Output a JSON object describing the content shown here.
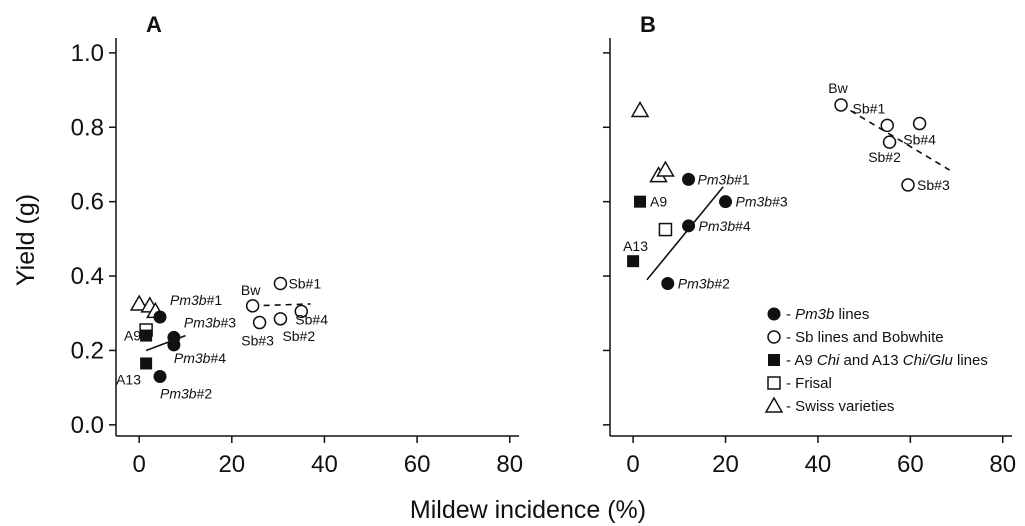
{
  "chart_data": {
    "type": "scatter",
    "xlabel": "Mildew incidence (%)",
    "ylabel": "Yield (g)",
    "xlim": [
      -5,
      82
    ],
    "ylim": [
      -0.03,
      1.04
    ],
    "x_ticks": [
      "0",
      "20",
      "40",
      "60",
      "80"
    ],
    "y_ticks": [
      "0.0",
      "0.2",
      "0.4",
      "0.6",
      "0.8",
      "1.0"
    ],
    "grid": false,
    "legend": {
      "placement": "bottom-right of panel B",
      "entries": [
        {
          "marker": "circle-filled",
          "parts": [
            {
              "t": "- ",
              "i": false
            },
            {
              "t": "Pm3b",
              "i": true
            },
            {
              "t": " lines",
              "i": false
            }
          ]
        },
        {
          "marker": "circle-open",
          "parts": [
            {
              "t": "- Sb lines and Bobwhite",
              "i": false
            }
          ]
        },
        {
          "marker": "square-filled",
          "parts": [
            {
              "t": "- A9 ",
              "i": false
            },
            {
              "t": "Chi",
              "i": true
            },
            {
              "t": " and A13 ",
              "i": false
            },
            {
              "t": "Chi/Glu",
              "i": true
            },
            {
              "t": " lines",
              "i": false
            }
          ]
        },
        {
          "marker": "square-open",
          "parts": [
            {
              "t": "- Frisal",
              "i": false
            }
          ]
        },
        {
          "marker": "triangle-open",
          "parts": [
            {
              "t": "- Swiss varieties",
              "i": false
            }
          ]
        }
      ]
    },
    "panels": [
      {
        "panel": "A",
        "points": [
          {
            "x": 0.0,
            "y": 0.325,
            "marker": "triangle-open"
          },
          {
            "x": 2.3,
            "y": 0.32,
            "marker": "triangle-open"
          },
          {
            "x": 3.5,
            "y": 0.305,
            "marker": "triangle-open"
          },
          {
            "x": 1.5,
            "y": 0.255,
            "marker": "square-open"
          },
          {
            "x": 1.5,
            "y": 0.24,
            "marker": "square-filled",
            "label": [
              {
                "t": "A9",
                "i": false
              }
            ],
            "anchor": "end",
            "dx": -5,
            "dy": 5
          },
          {
            "x": 1.5,
            "y": 0.165,
            "marker": "square-filled",
            "label": [
              {
                "t": "A13",
                "i": false
              }
            ],
            "anchor": "start",
            "dx": -30,
            "dy": 21
          },
          {
            "x": 4.5,
            "y": 0.29,
            "marker": "circle-filled",
            "label": [
              {
                "t": "Pm3b",
                "i": true
              },
              {
                "t": "#1",
                "i": false
              }
            ],
            "anchor": "start",
            "dx": 10,
            "dy": -12
          },
          {
            "x": 7.5,
            "y": 0.235,
            "marker": "circle-filled",
            "label": [
              {
                "t": "Pm3b",
                "i": true
              },
              {
                "t": "#3",
                "i": false
              }
            ],
            "anchor": "start",
            "dx": 10,
            "dy": -10
          },
          {
            "x": 7.5,
            "y": 0.215,
            "marker": "circle-filled",
            "label": [
              {
                "t": "Pm3b",
                "i": true
              },
              {
                "t": "#4",
                "i": false
              }
            ],
            "anchor": "start",
            "dx": 0,
            "dy": 18
          },
          {
            "x": 4.5,
            "y": 0.13,
            "marker": "circle-filled",
            "label": [
              {
                "t": "Pm3b",
                "i": true
              },
              {
                "t": "#2",
                "i": false
              }
            ],
            "anchor": "start",
            "dx": 0,
            "dy": 22
          },
          {
            "x": 24.5,
            "y": 0.32,
            "marker": "circle-open",
            "label": [
              {
                "t": "Bw",
                "i": false
              }
            ],
            "anchor": "middle",
            "dx": -2,
            "dy": -11
          },
          {
            "x": 30.5,
            "y": 0.38,
            "marker": "circle-open",
            "label": [
              {
                "t": "Sb#1",
                "i": false
              }
            ],
            "anchor": "start",
            "dx": 8,
            "dy": 5
          },
          {
            "x": 26.0,
            "y": 0.275,
            "marker": "circle-open",
            "label": [
              {
                "t": "Sb#3",
                "i": false
              }
            ],
            "anchor": "middle",
            "dx": -2,
            "dy": 23
          },
          {
            "x": 30.5,
            "y": 0.285,
            "marker": "circle-open",
            "label": [
              {
                "t": "Sb#2",
                "i": false
              }
            ],
            "anchor": "start",
            "dx": 2,
            "dy": 22
          },
          {
            "x": 35.0,
            "y": 0.305,
            "marker": "circle-open",
            "label": [
              {
                "t": "Sb#4",
                "i": false
              }
            ],
            "anchor": "start",
            "dx": -6,
            "dy": 13
          }
        ],
        "fits": [
          {
            "x": [
              1.5,
              10.0
            ],
            "y": [
              0.2,
              0.24
            ],
            "dash": false
          },
          {
            "x": 24.5,
            "y": 0.32,
            "x2": 37.0,
            "y2": 0.325,
            "dash": true
          }
        ]
      },
      {
        "panel": "B",
        "points": [
          {
            "x": 1.5,
            "y": 0.845,
            "marker": "triangle-open"
          },
          {
            "x": 5.5,
            "y": 0.67,
            "marker": "triangle-open"
          },
          {
            "x": 7.0,
            "y": 0.685,
            "marker": "triangle-open"
          },
          {
            "x": 7.0,
            "y": 0.525,
            "marker": "square-open"
          },
          {
            "x": 1.5,
            "y": 0.6,
            "marker": "square-filled",
            "label": [
              {
                "t": "A9",
                "i": false
              }
            ],
            "anchor": "start",
            "dx": 10,
            "dy": 5
          },
          {
            "x": 0.0,
            "y": 0.44,
            "marker": "square-filled",
            "label": [
              {
                "t": "A13",
                "i": false
              }
            ],
            "anchor": "start",
            "dx": -10,
            "dy": -10
          },
          {
            "x": 12.0,
            "y": 0.66,
            "marker": "circle-filled",
            "label": [
              {
                "t": "Pm3b",
                "i": true
              },
              {
                "t": "#1",
                "i": false
              }
            ],
            "anchor": "start",
            "dx": 9,
            "dy": 5
          },
          {
            "x": 20.0,
            "y": 0.6,
            "marker": "circle-filled",
            "label": [
              {
                "t": "Pm3b",
                "i": true
              },
              {
                "t": "#3",
                "i": false
              }
            ],
            "anchor": "start",
            "dx": 10,
            "dy": 5
          },
          {
            "x": 12.0,
            "y": 0.535,
            "marker": "circle-filled",
            "label": [
              {
                "t": "Pm3b",
                "i": true
              },
              {
                "t": "#4",
                "i": false
              }
            ],
            "anchor": "start",
            "dx": 10,
            "dy": 5
          },
          {
            "x": 7.5,
            "y": 0.38,
            "marker": "circle-filled",
            "label": [
              {
                "t": "Pm3b",
                "i": true
              },
              {
                "t": "#2",
                "i": false
              }
            ],
            "anchor": "start",
            "dx": 10,
            "dy": 5
          },
          {
            "x": 45.0,
            "y": 0.86,
            "marker": "circle-open",
            "label": [
              {
                "t": "Bw",
                "i": false
              }
            ],
            "anchor": "middle",
            "dx": -3,
            "dy": -12
          },
          {
            "x": 55.0,
            "y": 0.805,
            "marker": "circle-open",
            "label": [
              {
                "t": "Sb#1",
                "i": false
              }
            ],
            "anchor": "end",
            "dx": -2,
            "dy": -12
          },
          {
            "x": 62.0,
            "y": 0.81,
            "marker": "circle-open",
            "label": [
              {
                "t": "Sb#4",
                "i": false
              }
            ],
            "anchor": "middle",
            "dx": 0,
            "dy": 21
          },
          {
            "x": 55.5,
            "y": 0.76,
            "marker": "circle-open",
            "label": [
              {
                "t": "Sb#2",
                "i": false
              }
            ],
            "anchor": "middle",
            "dx": -5,
            "dy": 20
          },
          {
            "x": 59.5,
            "y": 0.645,
            "marker": "circle-open",
            "label": [
              {
                "t": "Sb#3",
                "i": false
              }
            ],
            "anchor": "start",
            "dx": 9,
            "dy": 5
          }
        ],
        "fits": [
          {
            "x": [
              3.0,
              19.5
            ],
            "y": [
              0.39,
              0.64
            ],
            "dash": false
          },
          {
            "x": [
              45.0,
              68.5
            ],
            "y": [
              0.86,
              0.685
            ],
            "dash": true
          }
        ]
      }
    ]
  },
  "colors": {
    "ink": "#111111",
    "background": "#ffffff"
  }
}
